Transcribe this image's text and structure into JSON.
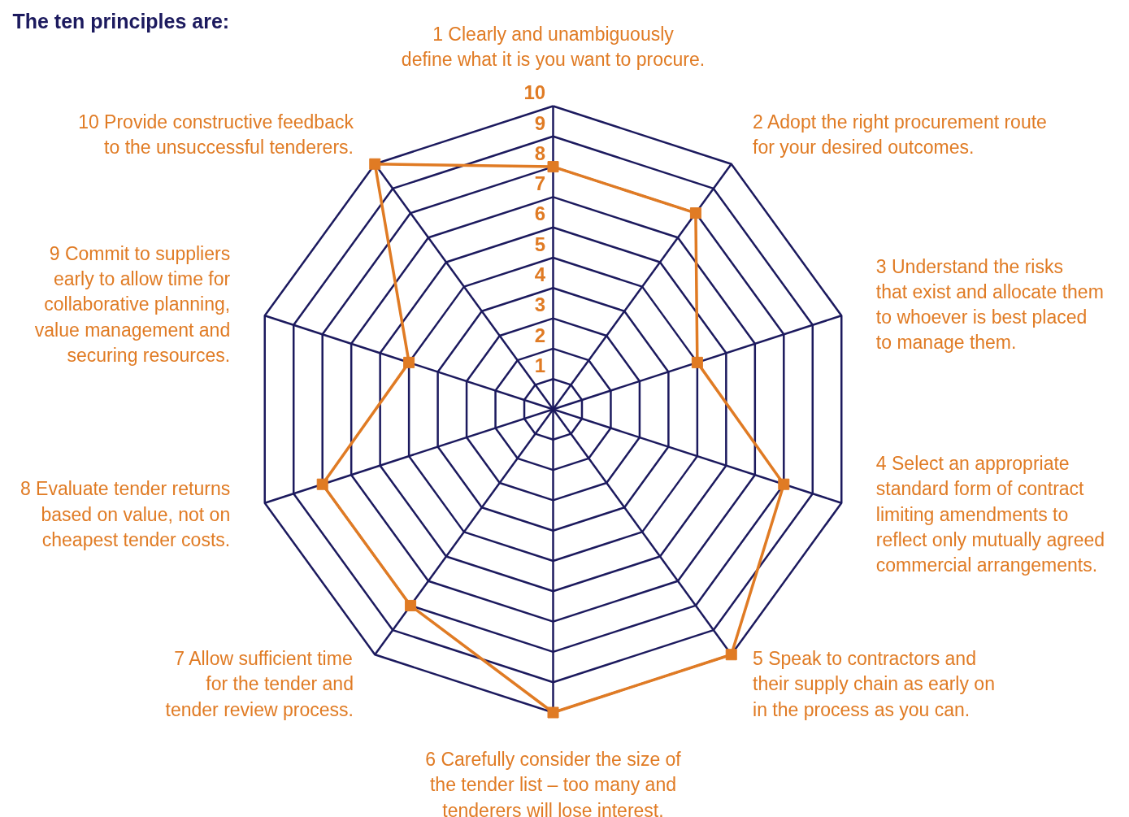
{
  "chart_data": {
    "type": "radar",
    "title": "The ten principles are:",
    "categories": [
      "1 Clearly and unambiguously\ndefine what it is you want to procure.",
      "2 Adopt the right procurement route\nfor your desired outcomes.",
      "3 Understand the risks\nthat exist and allocate them\nto whoever is best placed\nto manage them.",
      "4 Select an appropriate\nstandard form of contract\nlimiting amendments to\nreflect only mutually agreed\ncommercial arrangements.",
      "5 Speak to contractors and\ntheir supply chain as early on\nin the process as you can.",
      "6 Carefully consider the size of\nthe tender list – too many and\ntenderers will lose interest.",
      "7 Allow sufficient time\nfor the tender and\ntender review process.",
      "8 Evaluate tender returns\nbased on value, not on\ncheapest tender costs.",
      "9 Commit to suppliers\nearly to allow time for\ncollaborative planning,\nvalue management and\nsecuring resources.",
      "10 Provide constructive feedback\nto the unsuccessful tenderers."
    ],
    "series": [
      {
        "color": "#e07b24",
        "values": [
          8,
          8,
          5,
          8,
          10,
          10,
          8,
          8,
          5,
          10
        ]
      }
    ],
    "ylim": [
      0,
      10
    ],
    "yticks": [
      1,
      2,
      3,
      4,
      5,
      6,
      7,
      8,
      9,
      10
    ],
    "grid": true,
    "marker": "square",
    "line_style": "solid"
  }
}
